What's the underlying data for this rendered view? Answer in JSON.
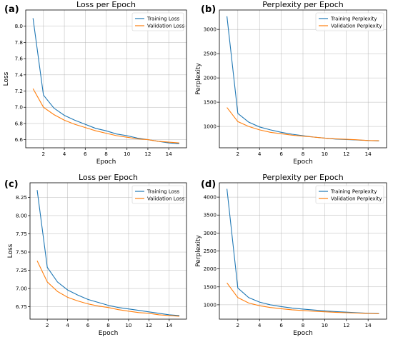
{
  "colors": {
    "training": "#1f77b4",
    "validation": "#ff7f0e"
  },
  "chart_data": [
    {
      "type": "line",
      "panel_label": "(a)",
      "title": "Loss per Epoch",
      "xlabel": "Epoch",
      "ylabel": "Loss",
      "xlim": [
        0.3,
        15.7
      ],
      "ylim": [
        6.5,
        8.2
      ],
      "xticks": [
        2,
        4,
        6,
        8,
        10,
        12,
        14
      ],
      "yticks": [
        6.6,
        6.8,
        7.0,
        7.2,
        7.4,
        7.6,
        7.8,
        8.0
      ],
      "ytick_labels": [
        "6.6",
        "6.8",
        "7.0",
        "7.2",
        "7.4",
        "7.6",
        "7.8",
        "8.0"
      ],
      "grid": true,
      "legend": "top-right",
      "x": [
        1,
        2,
        3,
        4,
        5,
        6,
        7,
        8,
        9,
        10,
        11,
        12,
        13,
        14,
        15
      ],
      "series": [
        {
          "name": "Training Loss",
          "color": "#1f77b4",
          "values": [
            8.1,
            7.15,
            6.99,
            6.9,
            6.84,
            6.79,
            6.74,
            6.71,
            6.67,
            6.65,
            6.62,
            6.6,
            6.58,
            6.56,
            6.55
          ]
        },
        {
          "name": "Validation Loss",
          "color": "#ff7f0e",
          "values": [
            7.23,
            7.0,
            6.91,
            6.84,
            6.79,
            6.75,
            6.71,
            6.68,
            6.65,
            6.63,
            6.61,
            6.6,
            6.58,
            6.57,
            6.56
          ]
        }
      ]
    },
    {
      "type": "line",
      "panel_label": "(b)",
      "title": "Perplexity per Epoch",
      "xlabel": "Epoch",
      "ylabel": "Perplexity",
      "xlim": [
        0.3,
        15.7
      ],
      "ylim": [
        560,
        3400
      ],
      "xticks": [
        2,
        4,
        6,
        8,
        10,
        12,
        14
      ],
      "yticks": [
        1000,
        1500,
        2000,
        2500,
        3000
      ],
      "ytick_labels": [
        "1000",
        "1500",
        "2000",
        "2500",
        "3000"
      ],
      "grid": true,
      "legend": "top-right",
      "x": [
        1,
        2,
        3,
        4,
        5,
        6,
        7,
        8,
        9,
        10,
        11,
        12,
        13,
        14,
        15
      ],
      "series": [
        {
          "name": "Training Perplexity",
          "color": "#1f77b4",
          "values": [
            3270,
            1270,
            1090,
            990,
            930,
            880,
            840,
            810,
            780,
            760,
            740,
            730,
            720,
            710,
            700
          ]
        },
        {
          "name": "Validation Perplexity",
          "color": "#ff7f0e",
          "values": [
            1390,
            1100,
            1000,
            930,
            880,
            850,
            820,
            800,
            780,
            760,
            745,
            735,
            725,
            710,
            705
          ]
        }
      ]
    },
    {
      "type": "line",
      "panel_label": "(c)",
      "title": "Loss per Epoch",
      "xlabel": "Epoch",
      "ylabel": "Loss",
      "xlim": [
        0.3,
        15.7
      ],
      "ylim": [
        6.58,
        8.45
      ],
      "xticks": [
        2,
        4,
        6,
        8,
        10,
        12,
        14
      ],
      "yticks": [
        6.75,
        7.0,
        7.25,
        7.5,
        7.75,
        8.0,
        8.25
      ],
      "ytick_labels": [
        "6.75",
        "7.00",
        "7.25",
        "7.50",
        "7.75",
        "8.00",
        "8.25"
      ],
      "grid": true,
      "legend": "top-right",
      "x": [
        1,
        2,
        3,
        4,
        5,
        6,
        7,
        8,
        9,
        10,
        11,
        12,
        13,
        14,
        15
      ],
      "series": [
        {
          "name": "Training Loss",
          "color": "#1f77b4",
          "values": [
            8.35,
            7.29,
            7.09,
            6.98,
            6.91,
            6.85,
            6.81,
            6.77,
            6.74,
            6.72,
            6.7,
            6.68,
            6.66,
            6.64,
            6.63
          ]
        },
        {
          "name": "Validation Loss",
          "color": "#ff7f0e",
          "values": [
            7.38,
            7.09,
            6.96,
            6.88,
            6.83,
            6.79,
            6.76,
            6.74,
            6.71,
            6.69,
            6.67,
            6.66,
            6.64,
            6.63,
            6.62
          ]
        }
      ]
    },
    {
      "type": "line",
      "panel_label": "(d)",
      "title": "Perplexity per Epoch",
      "xlabel": "Epoch",
      "ylabel": "Perplexity",
      "xlim": [
        0.3,
        15.7
      ],
      "ylim": [
        600,
        4400
      ],
      "xticks": [
        2,
        4,
        6,
        8,
        10,
        12,
        14
      ],
      "yticks": [
        1000,
        1500,
        2000,
        2500,
        3000,
        3500,
        4000
      ],
      "ytick_labels": [
        "1000",
        "1500",
        "2000",
        "2500",
        "3000",
        "3500",
        "4000"
      ],
      "grid": true,
      "legend": "top-right",
      "x": [
        1,
        2,
        3,
        4,
        5,
        6,
        7,
        8,
        9,
        10,
        11,
        12,
        13,
        14,
        15
      ],
      "series": [
        {
          "name": "Training Perplexity",
          "color": "#1f77b4",
          "values": [
            4230,
            1470,
            1200,
            1075,
            1000,
            950,
            910,
            880,
            855,
            830,
            810,
            795,
            780,
            765,
            755
          ]
        },
        {
          "name": "Validation Perplexity",
          "color": "#ff7f0e",
          "values": [
            1610,
            1200,
            1050,
            975,
            925,
            890,
            860,
            840,
            820,
            805,
            790,
            780,
            770,
            760,
            750
          ]
        }
      ]
    }
  ]
}
